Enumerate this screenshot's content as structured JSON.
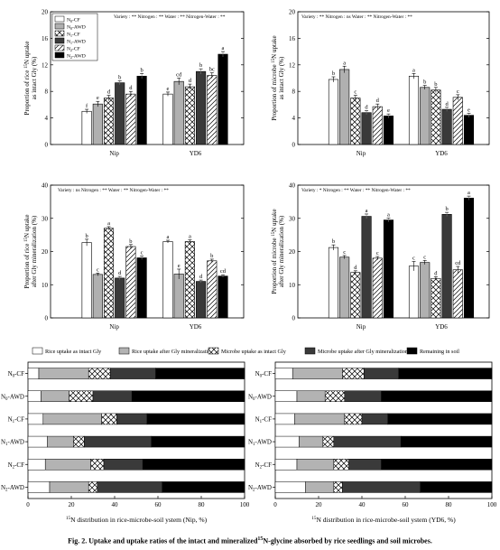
{
  "caption": {
    "prefix": "Fig. 2.",
    "text": "Uptake and uptake ratios of the intact and mineralized",
    "sup": "15",
    "suffix": "N-glycine absorbed by rice seedlings and soil microbes."
  },
  "colors": {
    "CF_N0": "#ffffff",
    "AWD_N0": "#b0b0b0",
    "CF_N1": "#ffffff",
    "AWD_N1": "#3a3a3a",
    "CF_N2": "#ffffff",
    "AWD_N2": "#000000",
    "rice_intact": "#ffffff",
    "rice_mineral": "#b3b3b3",
    "microbe_intact": "#ffffff",
    "microbe_mineral": "#3a3a3a",
    "soil": "#000000"
  },
  "legend_bar": [
    {
      "sub": "0",
      "suffix": "-CF",
      "pattern": "CF_N0"
    },
    {
      "sub": "0",
      "suffix": "-AWD",
      "pattern": "AWD_N0"
    },
    {
      "sub": "1",
      "suffix": "-CF",
      "pattern": "CF_N1"
    },
    {
      "sub": "1",
      "suffix": "-AWD",
      "pattern": "AWD_N1"
    },
    {
      "sub": "2",
      "suffix": "-CF",
      "pattern": "CF_N2"
    },
    {
      "sub": "2",
      "suffix": "-AWD",
      "pattern": "AWD_N2"
    }
  ],
  "chart_data": [
    {
      "type": "bar",
      "panel": "top-left",
      "ylabel": [
        "Proportion of rice ^15N uptake",
        "as intact Gly (%)"
      ],
      "ylim": [
        0,
        20
      ],
      "yticks": [
        0,
        4,
        8,
        12,
        16,
        20
      ],
      "categories": [
        "Nip",
        "YD6"
      ],
      "stats": "Variety : **   Nitrogen : **   Water : **   Nitrogen-Water : **",
      "series": [
        {
          "name": "N0-CF",
          "values": [
            5.0,
            7.6
          ],
          "errors": [
            0.3,
            0.3
          ],
          "letters": [
            "f",
            "e"
          ]
        },
        {
          "name": "N0-AWD",
          "values": [
            6.1,
            9.5
          ],
          "errors": [
            0.4,
            0.5
          ],
          "letters": [
            "e",
            "cd"
          ]
        },
        {
          "name": "N1-CF",
          "values": [
            7.0,
            8.7
          ],
          "errors": [
            0.4,
            0.4
          ],
          "letters": [
            "d",
            "d"
          ]
        },
        {
          "name": "N1-AWD",
          "values": [
            9.3,
            11.0
          ],
          "errors": [
            0.3,
            0.4
          ],
          "letters": [
            "b",
            "b"
          ]
        },
        {
          "name": "N2-CF",
          "values": [
            7.6,
            10.4
          ],
          "errors": [
            0.4,
            0.4
          ],
          "letters": [
            "d",
            "bc"
          ]
        },
        {
          "name": "N2-AWD",
          "values": [
            10.3,
            13.6
          ],
          "errors": [
            0.4,
            0.4
          ],
          "letters": [
            "b",
            "a"
          ]
        }
      ]
    },
    {
      "type": "bar",
      "panel": "top-right",
      "ylabel": [
        "Proportion of microbe ^15N uptake",
        "as intact Gly (%)"
      ],
      "ylim": [
        0,
        20
      ],
      "yticks": [
        0,
        4,
        8,
        12,
        16,
        20
      ],
      "categories": [
        "Nip",
        "YD6"
      ],
      "stats": "Variety : **   Nitrogen : ns   Water : **   Nitrogen-Water : **",
      "series": [
        {
          "name": "N0-CF",
          "values": [
            9.8,
            10.3
          ],
          "errors": [
            0.4,
            0.4
          ],
          "letters": [
            "b",
            "a"
          ]
        },
        {
          "name": "N0-AWD",
          "values": [
            11.3,
            8.6
          ],
          "errors": [
            0.5,
            0.3
          ],
          "letters": [
            "a",
            "b"
          ]
        },
        {
          "name": "N1-CF",
          "values": [
            7.0,
            8.2
          ],
          "errors": [
            0.4,
            0.4
          ],
          "letters": [
            "c",
            "b"
          ]
        },
        {
          "name": "N1-AWD",
          "values": [
            4.8,
            5.3
          ],
          "errors": [
            0.3,
            0.3
          ],
          "letters": [
            "d",
            "d"
          ]
        },
        {
          "name": "N2-CF",
          "values": [
            5.7,
            7.1
          ],
          "errors": [
            0.4,
            0.4
          ],
          "letters": [
            "d",
            "c"
          ]
        },
        {
          "name": "N2-AWD",
          "values": [
            4.3,
            4.4
          ],
          "errors": [
            0.3,
            0.3
          ],
          "letters": [
            "e",
            "e"
          ]
        }
      ]
    },
    {
      "type": "bar",
      "panel": "middle-left",
      "ylabel": [
        "Proportion of rice ^15N uptake",
        "after Gly mineralization (%)"
      ],
      "ylim": [
        0,
        40
      ],
      "yticks": [
        0,
        10,
        20,
        30,
        40
      ],
      "categories": [
        "Nip",
        "YD6"
      ],
      "stats": "Variety : ns   Nitrogen : **   Water : **   Nitrogen-Water : **",
      "series": [
        {
          "name": "N0-CF",
          "values": [
            22.7,
            23.0
          ],
          "errors": [
            1.0,
            0.4
          ],
          "letters": [
            "b",
            "a"
          ]
        },
        {
          "name": "N0-AWD",
          "values": [
            13.1,
            13.2
          ],
          "errors": [
            0.4,
            1.5
          ],
          "letters": [
            "c",
            "e"
          ]
        },
        {
          "name": "N1-CF",
          "values": [
            27.0,
            23.0
          ],
          "errors": [
            0.5,
            0.5
          ],
          "letters": [
            "a",
            "a"
          ]
        },
        {
          "name": "N1-AWD",
          "values": [
            12.0,
            11.0
          ],
          "errors": [
            0.5,
            0.4
          ],
          "letters": [
            "d",
            "d"
          ]
        },
        {
          "name": "N2-CF",
          "values": [
            21.5,
            17.2
          ],
          "errors": [
            0.6,
            0.5
          ],
          "letters": [
            "b",
            "b"
          ]
        },
        {
          "name": "N2-AWD",
          "values": [
            18.1,
            12.6
          ],
          "errors": [
            0.5,
            0.4
          ],
          "letters": [
            "c",
            "cd"
          ]
        }
      ]
    },
    {
      "type": "bar",
      "panel": "middle-right",
      "ylabel": [
        "Proportion of microbe ^15N uptake",
        "after Gly mineralization (%)"
      ],
      "ylim": [
        0,
        40
      ],
      "yticks": [
        0,
        10,
        20,
        30,
        40
      ],
      "categories": [
        "Nip",
        "YD6"
      ],
      "stats": "Variety : *   Nitrogen : **   Water : **   Nitrogen-Water : **",
      "series": [
        {
          "name": "N0-CF",
          "values": [
            21.2,
            15.6
          ],
          "errors": [
            0.8,
            1.4
          ],
          "letters": [
            "b",
            "c"
          ]
        },
        {
          "name": "N0-AWD",
          "values": [
            18.3,
            16.7
          ],
          "errors": [
            0.5,
            0.6
          ],
          "letters": [
            "c",
            "c"
          ]
        },
        {
          "name": "N1-CF",
          "values": [
            13.7,
            11.9
          ],
          "errors": [
            0.5,
            0.5
          ],
          "letters": [
            "d",
            "d"
          ]
        },
        {
          "name": "N1-AWD",
          "values": [
            30.6,
            31.2
          ],
          "errors": [
            0.7,
            0.6
          ],
          "letters": [
            "a",
            "b"
          ]
        },
        {
          "name": "N2-CF",
          "values": [
            18.0,
            14.5
          ],
          "errors": [
            0.5,
            1.0
          ],
          "letters": [
            "c",
            "cd"
          ]
        },
        {
          "name": "N2-AWD",
          "values": [
            29.5,
            36.1
          ],
          "errors": [
            0.6,
            0.6
          ],
          "letters": [
            "a",
            "a"
          ]
        }
      ]
    },
    {
      "type": "bar",
      "subtype": "stacked-horizontal",
      "panel": "bottom-left",
      "xlabel": "^15N distribution in rice-microbe-soil ystem (Nip, %)",
      "xlim": [
        0,
        100
      ],
      "xticks": [
        0,
        20,
        40,
        60,
        80,
        100
      ],
      "categories": [
        {
          "sub": "0",
          "suffix": "-CF"
        },
        {
          "sub": "0",
          "suffix": "-AWD"
        },
        {
          "sub": "1",
          "suffix": "-CF"
        },
        {
          "sub": "1",
          "suffix": "-AWD"
        },
        {
          "sub": "2",
          "suffix": "-CF"
        },
        {
          "sub": "2",
          "suffix": "-AWD"
        }
      ],
      "series": [
        {
          "name": "Rice uptake as intact Gly",
          "values": [
            5,
            6,
            7,
            9,
            8,
            10
          ]
        },
        {
          "name": "Rice uptake after Gly mineralization",
          "values": [
            23,
            13,
            27,
            12,
            21,
            18
          ]
        },
        {
          "name": "Microbe uptake as intact Gly",
          "values": [
            10,
            11,
            7,
            5,
            6,
            4
          ]
        },
        {
          "name": "Microbe uptake after Gly mineralization",
          "values": [
            21,
            18,
            14,
            31,
            18,
            30
          ]
        },
        {
          "name": "Remaining in soil",
          "values": [
            41,
            52,
            45,
            43,
            47,
            38
          ]
        }
      ]
    },
    {
      "type": "bar",
      "subtype": "stacked-horizontal",
      "panel": "bottom-right",
      "xlabel": "^15N distribution in rice-microbe-soil ystem (YD6, %)",
      "xlim": [
        0,
        100
      ],
      "xticks": [
        0,
        20,
        40,
        60,
        80,
        100
      ],
      "categories": [
        {
          "sub": "0",
          "suffix": "-CF"
        },
        {
          "sub": "0",
          "suffix": "-AWD"
        },
        {
          "sub": "1",
          "suffix": "-CF"
        },
        {
          "sub": "1",
          "suffix": "-AWD"
        },
        {
          "sub": "2",
          "suffix": "-CF"
        },
        {
          "sub": "2",
          "suffix": "-AWD"
        }
      ],
      "series": [
        {
          "name": "Rice uptake as intact Gly",
          "values": [
            8,
            10,
            9,
            11,
            10,
            14
          ]
        },
        {
          "name": "Rice uptake after Gly mineralization",
          "values": [
            23,
            13,
            23,
            11,
            17,
            13
          ]
        },
        {
          "name": "Microbe uptake as intact Gly",
          "values": [
            10,
            9,
            8,
            5,
            7,
            4
          ]
        },
        {
          "name": "Microbe uptake after Gly mineralization",
          "values": [
            16,
            17,
            12,
            31,
            15,
            36
          ]
        },
        {
          "name": "Remaining in soil",
          "values": [
            43,
            51,
            48,
            42,
            51,
            33
          ]
        }
      ]
    }
  ]
}
